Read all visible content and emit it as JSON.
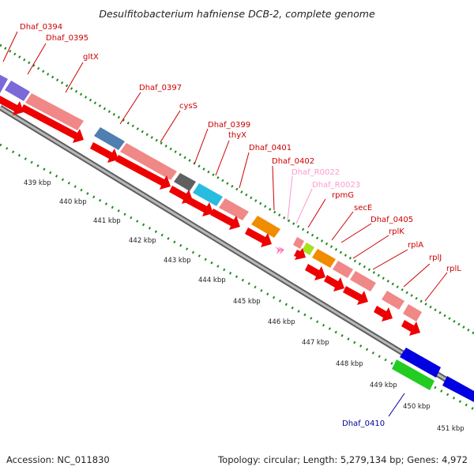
{
  "header": {
    "title": "Desulfitobacterium hafniense DCB-2, complete genome"
  },
  "footer": {
    "accession": "Accession: NC_011830",
    "topology": "Topology: circular; Length: 5,279,134 bp; Genes: 4,972"
  },
  "colors": {
    "backbone": "#8c8c8c",
    "tick": "#1f8a1f",
    "label_default": "#cc0000",
    "label_rna": "#ff77bb",
    "label_blue": "#000099"
  },
  "tick_labels": [
    "439 kbp",
    "440 kbp",
    "441 kbp",
    "442 kbp",
    "443 kbp",
    "444 kbp",
    "445 kbp",
    "446 kbp",
    "447 kbp",
    "448 kbp",
    "449 kbp",
    "450 kbp",
    "451 kbp"
  ],
  "gene_labels": [
    {
      "name": "Dhaf_0394",
      "kind": "cds"
    },
    {
      "name": "Dhaf_0395",
      "kind": "cds"
    },
    {
      "name": "gltX",
      "kind": "cds"
    },
    {
      "name": "Dhaf_0397",
      "kind": "cds"
    },
    {
      "name": "cysS",
      "kind": "cds"
    },
    {
      "name": "Dhaf_0399",
      "kind": "cds"
    },
    {
      "name": "thyX",
      "kind": "cds"
    },
    {
      "name": "Dhaf_0401",
      "kind": "cds"
    },
    {
      "name": "Dhaf_0402",
      "kind": "cds"
    },
    {
      "name": "Dhaf_R0022",
      "kind": "rna"
    },
    {
      "name": "Dhaf_R0023",
      "kind": "rna"
    },
    {
      "name": "rpmG",
      "kind": "cds"
    },
    {
      "name": "secE",
      "kind": "cds"
    },
    {
      "name": "Dhaf_0405",
      "kind": "cds"
    },
    {
      "name": "rplK",
      "kind": "cds"
    },
    {
      "name": "rplA",
      "kind": "cds"
    },
    {
      "name": "rplJ",
      "kind": "cds"
    },
    {
      "name": "rplL",
      "kind": "cds"
    },
    {
      "name": "Dhaf_0410",
      "kind": "reverse"
    }
  ]
}
